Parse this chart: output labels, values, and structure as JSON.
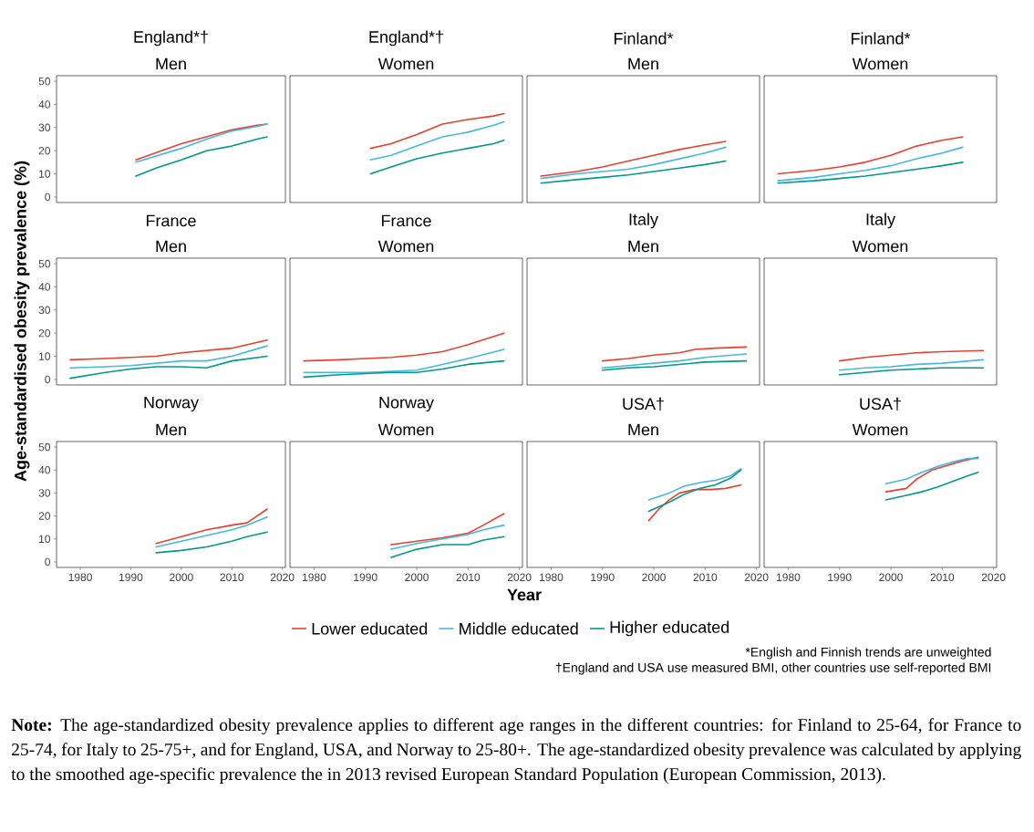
{
  "chart_data": [
    {
      "type": "line",
      "title": "England*†",
      "subtitle": "Men",
      "xlim": [
        1975.3,
        2020.6
      ],
      "ylim": [
        -2.4,
        52.4
      ],
      "xticks": [
        1980,
        1990,
        2000,
        2010,
        2020
      ],
      "yticks": [
        0,
        10,
        20,
        30,
        40,
        50
      ],
      "tick_labels": "y",
      "legend": "bottom",
      "series": [
        {
          "name": "Lower educated",
          "color": "#e8402e",
          "x": [
            1991,
            2000,
            2005,
            2010,
            2015,
            2017
          ],
          "values": [
            16,
            23,
            26,
            29,
            31,
            31.5
          ]
        },
        {
          "name": "Middle educated",
          "color": "#45b8e0",
          "x": [
            1991,
            2000,
            2005,
            2010,
            2015,
            2017
          ],
          "values": [
            15,
            21,
            25,
            28.5,
            30.5,
            31.5
          ]
        },
        {
          "name": "Higher educated",
          "color": "#00998a",
          "x": [
            1991,
            1995,
            2000,
            2005,
            2010,
            2015,
            2017
          ],
          "values": [
            9,
            12.5,
            16,
            20,
            22,
            25,
            26
          ]
        }
      ]
    },
    {
      "type": "line",
      "title": "England*†",
      "subtitle": "Women",
      "xlim": [
        1975.3,
        2020.6
      ],
      "ylim": [
        -2.4,
        52.4
      ],
      "xticks": [
        1980,
        1990,
        2000,
        2010,
        2020
      ],
      "yticks": [
        0,
        10,
        20,
        30,
        40,
        50
      ],
      "tick_labels": false,
      "series": [
        {
          "color": "#e8402e",
          "x": [
            1991,
            1995,
            2000,
            2005,
            2010,
            2015,
            2017
          ],
          "values": [
            21,
            23,
            27,
            31.5,
            33.5,
            35,
            36
          ]
        },
        {
          "color": "#45b8e0",
          "x": [
            1991,
            1995,
            2000,
            2005,
            2010,
            2015,
            2017
          ],
          "values": [
            16,
            18,
            22,
            26,
            28,
            31,
            32.5
          ]
        },
        {
          "color": "#00998a",
          "x": [
            1991,
            1995,
            2000,
            2005,
            2010,
            2015,
            2017
          ],
          "values": [
            10,
            13,
            16.5,
            19,
            21,
            23,
            24.5
          ]
        }
      ]
    },
    {
      "type": "line",
      "title": "Finland*",
      "subtitle": "Men",
      "xlim": [
        1975.3,
        2020.6
      ],
      "ylim": [
        -2.4,
        52.4
      ],
      "xticks": [
        1980,
        1990,
        2000,
        2010,
        2020
      ],
      "yticks": [
        0,
        10,
        20,
        30,
        40,
        50
      ],
      "tick_labels": false,
      "series": [
        {
          "color": "#e8402e",
          "x": [
            1978,
            1985,
            1990,
            1995,
            2000,
            2005,
            2010,
            2014
          ],
          "values": [
            9,
            11,
            13,
            15.5,
            18,
            20.5,
            22.5,
            24
          ]
        },
        {
          "color": "#45b8e0",
          "x": [
            1978,
            1985,
            1990,
            1995,
            2000,
            2005,
            2010,
            2014
          ],
          "values": [
            8,
            10,
            11,
            12,
            14,
            16.5,
            19,
            21.5
          ]
        },
        {
          "color": "#00998a",
          "x": [
            1978,
            1985,
            1990,
            1995,
            2000,
            2005,
            2010,
            2014
          ],
          "values": [
            6,
            7.5,
            8.5,
            9.5,
            11,
            12.5,
            14,
            15.5
          ]
        }
      ]
    },
    {
      "type": "line",
      "title": "Finland*",
      "subtitle": "Women",
      "xlim": [
        1975.3,
        2020.6
      ],
      "ylim": [
        -2.4,
        52.4
      ],
      "xticks": [
        1980,
        1990,
        2000,
        2010,
        2020
      ],
      "yticks": [
        0,
        10,
        20,
        30,
        40,
        50
      ],
      "tick_labels": false,
      "series": [
        {
          "color": "#e8402e",
          "x": [
            1978,
            1985,
            1990,
            1995,
            2000,
            2005,
            2010,
            2014
          ],
          "values": [
            10,
            11.5,
            13,
            15,
            18,
            22,
            24.5,
            26
          ]
        },
        {
          "color": "#45b8e0",
          "x": [
            1978,
            1985,
            1990,
            1995,
            2000,
            2005,
            2010,
            2014
          ],
          "values": [
            7,
            8.5,
            10,
            11.5,
            13.5,
            16.5,
            19,
            21.5
          ]
        },
        {
          "color": "#00998a",
          "x": [
            1978,
            1985,
            1990,
            1995,
            2000,
            2005,
            2010,
            2014
          ],
          "values": [
            6,
            7,
            8,
            9,
            10.5,
            12,
            13.5,
            15
          ]
        }
      ]
    },
    {
      "type": "line",
      "title": "France",
      "subtitle": "Men",
      "ylabel": "Age-standardised obesity prevalence (%)",
      "xlim": [
        1975.3,
        2020.6
      ],
      "ylim": [
        -2.4,
        52.4
      ],
      "xticks": [
        1980,
        1990,
        2000,
        2010,
        2020
      ],
      "yticks": [
        0,
        10,
        20,
        30,
        40,
        50
      ],
      "tick_labels": "y",
      "series": [
        {
          "color": "#e8402e",
          "x": [
            1978,
            1985,
            1990,
            1995,
            2000,
            2005,
            2010,
            2017
          ],
          "values": [
            8.5,
            9,
            9.5,
            10,
            11.5,
            12.5,
            13.5,
            17
          ]
        },
        {
          "color": "#45b8e0",
          "x": [
            1978,
            1985,
            1990,
            1995,
            2000,
            2005,
            2010,
            2017
          ],
          "values": [
            5,
            5.5,
            6,
            7,
            8,
            8,
            10,
            14.5
          ]
        },
        {
          "color": "#00998a",
          "x": [
            1978,
            1985,
            1990,
            1995,
            2000,
            2005,
            2010,
            2017
          ],
          "values": [
            0.5,
            3,
            4.5,
            5.5,
            5.5,
            5,
            8,
            10
          ]
        }
      ]
    },
    {
      "type": "line",
      "title": "France",
      "subtitle": "Women",
      "xlim": [
        1975.3,
        2020.6
      ],
      "ylim": [
        -2.4,
        52.4
      ],
      "xticks": [
        1980,
        1990,
        2000,
        2010,
        2020
      ],
      "yticks": [
        0,
        10,
        20,
        30,
        40,
        50
      ],
      "tick_labels": false,
      "series": [
        {
          "color": "#e8402e",
          "x": [
            1978,
            1985,
            1990,
            1995,
            2000,
            2005,
            2010,
            2017
          ],
          "values": [
            8,
            8.5,
            9,
            9.5,
            10.5,
            12,
            15,
            20
          ]
        },
        {
          "color": "#45b8e0",
          "x": [
            1978,
            1985,
            1990,
            1995,
            2000,
            2005,
            2010,
            2017
          ],
          "values": [
            3,
            3,
            3,
            3.5,
            4,
            6.5,
            9,
            13
          ]
        },
        {
          "color": "#00998a",
          "x": [
            1978,
            1985,
            1990,
            1995,
            2000,
            2005,
            2010,
            2017
          ],
          "values": [
            1,
            2,
            2.5,
            3,
            3,
            4.5,
            6.5,
            8
          ]
        }
      ]
    },
    {
      "type": "line",
      "title": "Italy",
      "subtitle": "Men",
      "xlim": [
        1975.3,
        2020.6
      ],
      "ylim": [
        -2.4,
        52.4
      ],
      "xticks": [
        1980,
        1990,
        2000,
        2010,
        2020
      ],
      "yticks": [
        0,
        10,
        20,
        30,
        40,
        50
      ],
      "tick_labels": false,
      "series": [
        {
          "color": "#e8402e",
          "x": [
            1990,
            1995,
            2000,
            2005,
            2008,
            2012,
            2018
          ],
          "values": [
            8,
            9,
            10.5,
            11.5,
            13,
            13.5,
            14
          ]
        },
        {
          "color": "#45b8e0",
          "x": [
            1990,
            1995,
            2000,
            2005,
            2010,
            2018
          ],
          "values": [
            5,
            6,
            7,
            8,
            9.5,
            11
          ]
        },
        {
          "color": "#00998a",
          "x": [
            1990,
            1995,
            2000,
            2005,
            2010,
            2018
          ],
          "values": [
            4,
            5,
            5.5,
            6.5,
            7.5,
            8
          ]
        }
      ]
    },
    {
      "type": "line",
      "title": "Italy",
      "subtitle": "Women",
      "xlim": [
        1975.3,
        2020.6
      ],
      "ylim": [
        -2.4,
        52.4
      ],
      "xticks": [
        1980,
        1990,
        2000,
        2010,
        2020
      ],
      "yticks": [
        0,
        10,
        20,
        30,
        40,
        50
      ],
      "tick_labels": false,
      "series": [
        {
          "color": "#e8402e",
          "x": [
            1990,
            1995,
            2000,
            2005,
            2010,
            2018
          ],
          "values": [
            8,
            9.5,
            10.5,
            11.5,
            12,
            12.5
          ]
        },
        {
          "color": "#45b8e0",
          "x": [
            1990,
            1995,
            2000,
            2005,
            2010,
            2018
          ],
          "values": [
            4,
            5,
            5.5,
            6.5,
            7,
            8.5
          ]
        },
        {
          "color": "#00998a",
          "x": [
            1990,
            1995,
            2000,
            2005,
            2010,
            2018
          ],
          "values": [
            2,
            3,
            4,
            4.5,
            5,
            5
          ]
        }
      ]
    },
    {
      "type": "line",
      "title": "Norway",
      "subtitle": "Men",
      "xlim": [
        1975.3,
        2020.6
      ],
      "ylim": [
        -2.4,
        52.4
      ],
      "xticks": [
        1980,
        1990,
        2000,
        2010,
        2020
      ],
      "yticks": [
        0,
        10,
        20,
        30,
        40,
        50
      ],
      "series": [
        {
          "color": "#e8402e",
          "x": [
            1995,
            2000,
            2005,
            2010,
            2013,
            2017
          ],
          "values": [
            8,
            11,
            14,
            16,
            17,
            23
          ]
        },
        {
          "color": "#45b8e0",
          "x": [
            1995,
            2000,
            2005,
            2010,
            2013,
            2017
          ],
          "values": [
            6.5,
            9,
            11.5,
            14,
            16,
            19.5
          ]
        },
        {
          "color": "#00998a",
          "x": [
            1995,
            2000,
            2005,
            2010,
            2013,
            2017
          ],
          "values": [
            4,
            5,
            6.5,
            9,
            11,
            13
          ]
        }
      ]
    },
    {
      "type": "line",
      "title": "Norway",
      "subtitle": "Women",
      "xlabel": "Year",
      "xlim": [
        1975.3,
        2020.6
      ],
      "ylim": [
        -2.4,
        52.4
      ],
      "xticks": [
        1980,
        1990,
        2000,
        2010,
        2020
      ],
      "yticks": [
        0,
        10,
        20,
        30,
        40,
        50
      ],
      "tick_labels": "x",
      "series": [
        {
          "color": "#e8402e",
          "x": [
            1995,
            2000,
            2005,
            2010,
            2013,
            2017
          ],
          "values": [
            7.5,
            9,
            10.5,
            12.5,
            16,
            21
          ]
        },
        {
          "color": "#45b8e0",
          "x": [
            1995,
            2000,
            2005,
            2010,
            2013,
            2017
          ],
          "values": [
            5.5,
            8,
            10,
            12,
            14,
            16
          ]
        },
        {
          "color": "#00998a",
          "x": [
            1995,
            2000,
            2005,
            2010,
            2013,
            2017
          ],
          "values": [
            2,
            5.5,
            7.5,
            7.5,
            9.5,
            11
          ]
        }
      ]
    },
    {
      "type": "line",
      "title": "USA†",
      "subtitle": "Men",
      "xlim": [
        1975.3,
        2020.6
      ],
      "ylim": [
        -2.4,
        52.4
      ],
      "xticks": [
        1980,
        1990,
        2000,
        2010,
        2020
      ],
      "yticks": [
        0,
        10,
        20,
        30,
        40,
        50
      ],
      "tick_labels": "x",
      "series": [
        {
          "color": "#e8402e",
          "x": [
            1999,
            2001,
            2003,
            2005,
            2008,
            2011,
            2014,
            2017
          ],
          "values": [
            18,
            23,
            27,
            30,
            31.5,
            31.5,
            32,
            33.5
          ]
        },
        {
          "color": "#45b8e0",
          "x": [
            1999,
            2003,
            2006,
            2009,
            2012,
            2015,
            2017
          ],
          "values": [
            27,
            30,
            33,
            34.5,
            35.5,
            37.5,
            40.5
          ]
        },
        {
          "color": "#00998a",
          "x": [
            1999,
            2003,
            2006,
            2009,
            2012,
            2015,
            2017
          ],
          "values": [
            22,
            26,
            29.5,
            32,
            33.5,
            36.5,
            40
          ]
        }
      ]
    },
    {
      "type": "line",
      "title": "USA†",
      "subtitle": "Women",
      "xlim": [
        1975.3,
        2020.6
      ],
      "ylim": [
        -2.4,
        52.4
      ],
      "xticks": [
        1980,
        1990,
        2000,
        2010,
        2020
      ],
      "yticks": [
        0,
        10,
        20,
        30,
        40,
        50
      ],
      "tick_labels": "x",
      "annotations": [
        "*English and Finnish trends are unweighted",
        "†England and USA use measured BMI, other countries use self-reported BMI",
        "**Note:** The age-standardized obesity prevalence applies to different age ranges in the different countries: for Finland to 25-64, for France to 25-74, for Italy to 25-75+, and for England, USA, and Norway to 25-80+. The age-standardized obesity prevalence was calculated by applying to the smoothed age-specific prevalence the in 2013 revised European Standard Population (European Commission, 2013)."
      ],
      "series": [
        {
          "color": "#e8402e",
          "x": [
            1999,
            2003,
            2005,
            2008,
            2011,
            2014,
            2017
          ],
          "values": [
            30.5,
            32,
            36,
            40,
            42,
            44,
            45.5
          ]
        },
        {
          "color": "#45b8e0",
          "x": [
            1999,
            2003,
            2006,
            2009,
            2012,
            2015,
            2017
          ],
          "values": [
            34,
            36,
            39,
            41.5,
            43.5,
            45,
            45
          ]
        },
        {
          "color": "#00998a",
          "x": [
            1999,
            2003,
            2006,
            2009,
            2012,
            2015,
            2017
          ],
          "values": [
            27,
            29,
            30.5,
            32.5,
            35,
            37.5,
            39
          ]
        }
      ]
    }
  ]
}
